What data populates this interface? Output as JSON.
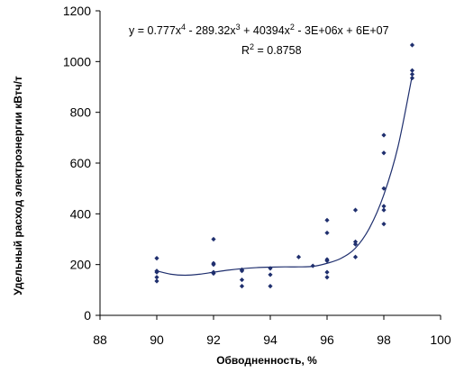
{
  "chart_data": {
    "type": "scatter",
    "xlabel": "Обводненность, %",
    "ylabel": "Удельный расход электроэнергии кВтч/т",
    "xlim": [
      88,
      100
    ],
    "ylim": [
      0,
      1200
    ],
    "xticks": [
      88,
      90,
      92,
      94,
      96,
      98,
      100
    ],
    "yticks": [
      0,
      200,
      400,
      600,
      800,
      1000,
      1200
    ],
    "grid": false,
    "trendline": {
      "type": "polynomial",
      "order": 4,
      "equation_parts": [
        "y = 0.777x",
        "4",
        " - 289.32x",
        "3",
        " + 40394x",
        "2",
        " - 3E+06x + 6E+07"
      ],
      "r2_parts": [
        "R",
        "2",
        " = 0.8758"
      ],
      "x": [
        90,
        90.5,
        91,
        91.5,
        92,
        92.5,
        93,
        93.5,
        94,
        94.5,
        95,
        95.5,
        96,
        96.5,
        97,
        97.5,
        98,
        98.5,
        99
      ],
      "y": [
        175,
        162,
        158,
        162,
        170,
        178,
        184,
        188,
        190,
        191,
        191,
        193,
        205,
        225,
        265,
        345,
        475,
        665,
        945
      ]
    },
    "points": [
      {
        "x": 90,
        "y": 225
      },
      {
        "x": 90,
        "y": 175
      },
      {
        "x": 90,
        "y": 170
      },
      {
        "x": 90,
        "y": 150
      },
      {
        "x": 90,
        "y": 135
      },
      {
        "x": 92,
        "y": 300
      },
      {
        "x": 92,
        "y": 205
      },
      {
        "x": 92,
        "y": 200
      },
      {
        "x": 92,
        "y": 170
      },
      {
        "x": 92,
        "y": 165
      },
      {
        "x": 93,
        "y": 180
      },
      {
        "x": 93,
        "y": 175
      },
      {
        "x": 93,
        "y": 140
      },
      {
        "x": 93,
        "y": 115
      },
      {
        "x": 94,
        "y": 185
      },
      {
        "x": 94,
        "y": 160
      },
      {
        "x": 94,
        "y": 115
      },
      {
        "x": 95,
        "y": 230
      },
      {
        "x": 95.5,
        "y": 195
      },
      {
        "x": 96,
        "y": 375
      },
      {
        "x": 96,
        "y": 325
      },
      {
        "x": 96,
        "y": 220
      },
      {
        "x": 96,
        "y": 215
      },
      {
        "x": 96,
        "y": 170
      },
      {
        "x": 96,
        "y": 150
      },
      {
        "x": 97,
        "y": 415
      },
      {
        "x": 97,
        "y": 290
      },
      {
        "x": 97,
        "y": 280
      },
      {
        "x": 97,
        "y": 230
      },
      {
        "x": 98,
        "y": 710
      },
      {
        "x": 98,
        "y": 640
      },
      {
        "x": 98,
        "y": 500
      },
      {
        "x": 98,
        "y": 430
      },
      {
        "x": 98,
        "y": 415
      },
      {
        "x": 98,
        "y": 360
      },
      {
        "x": 99,
        "y": 1065
      },
      {
        "x": 99,
        "y": 965
      },
      {
        "x": 99,
        "y": 950
      },
      {
        "x": 99,
        "y": 935
      }
    ]
  },
  "colors": {
    "points": "#1f2f6e",
    "trendline": "#1f2f6e",
    "axis": "#000000"
  }
}
